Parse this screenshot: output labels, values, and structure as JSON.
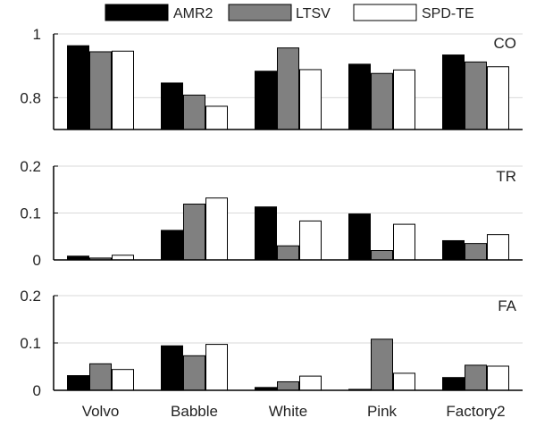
{
  "chart_data": {
    "type": "bar",
    "categories": [
      "Volvo",
      "Babble",
      "White",
      "Pink",
      "Factory2"
    ],
    "legend": {
      "placement": "top",
      "entries": [
        {
          "name": "AMR2",
          "color": "#000000"
        },
        {
          "name": "LTSV",
          "color": "#808080"
        },
        {
          "name": "SPD-TE",
          "color": "#ffffff"
        }
      ]
    },
    "grid": "horizontal",
    "panels": [
      {
        "label": "CO",
        "ylim": [
          0.7,
          1.0
        ],
        "yticks": [
          {
            "value": 0.8,
            "label": "0.8"
          },
          {
            "value": 1.0,
            "label": "1"
          }
        ],
        "series": [
          {
            "name": "AMR2",
            "values": [
              0.963,
              0.846,
              0.883,
              0.905,
              0.934
            ]
          },
          {
            "name": "LTSV",
            "values": [
              0.944,
              0.808,
              0.956,
              0.876,
              0.912
            ]
          },
          {
            "name": "SPD-TE",
            "values": [
              0.946,
              0.773,
              0.888,
              0.887,
              0.897
            ]
          }
        ]
      },
      {
        "label": "TR",
        "ylim": [
          0,
          0.2
        ],
        "yticks": [
          {
            "value": 0,
            "label": "0"
          },
          {
            "value": 0.1,
            "label": "0.1"
          },
          {
            "value": 0.2,
            "label": "0.2"
          }
        ],
        "series": [
          {
            "name": "AMR2",
            "values": [
              0.008,
              0.063,
              0.113,
              0.098,
              0.041
            ]
          },
          {
            "name": "LTSV",
            "values": [
              0.004,
              0.119,
              0.03,
              0.02,
              0.035
            ]
          },
          {
            "name": "SPD-TE",
            "values": [
              0.01,
              0.132,
              0.083,
              0.076,
              0.054
            ]
          }
        ]
      },
      {
        "label": "FA",
        "ylim": [
          0,
          0.2
        ],
        "yticks": [
          {
            "value": 0,
            "label": "0"
          },
          {
            "value": 0.1,
            "label": "0.1"
          },
          {
            "value": 0.2,
            "label": "0.2"
          }
        ],
        "series": [
          {
            "name": "AMR2",
            "values": [
              0.031,
              0.094,
              0.006,
              0.002,
              0.027
            ]
          },
          {
            "name": "LTSV",
            "values": [
              0.056,
              0.073,
              0.018,
              0.108,
              0.053
            ]
          },
          {
            "name": "SPD-TE",
            "values": [
              0.044,
              0.097,
              0.03,
              0.036,
              0.051
            ]
          }
        ]
      }
    ]
  }
}
